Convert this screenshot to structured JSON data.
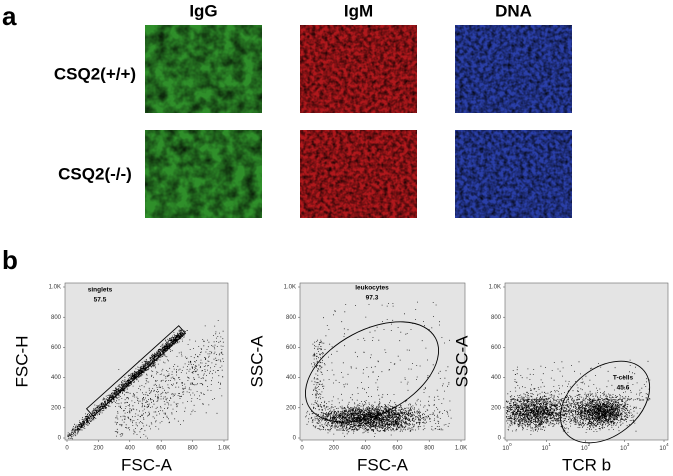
{
  "panel_a": {
    "label": "a",
    "columns": [
      "IgG",
      "IgM",
      "DNA"
    ],
    "rows": [
      "CSQ2(+/+)",
      "CSQ2(-/-)"
    ]
  },
  "panel_b": {
    "label": "b",
    "plots": [
      {
        "y_label": "FSC-H",
        "x_label": "FSC-A",
        "gate": "singlets",
        "percent": "57.5",
        "xticks": [
          "0",
          "200",
          "400",
          "600",
          "800",
          "1.0K"
        ],
        "yticks": [
          "0",
          "200",
          "400",
          "600",
          "800",
          "1.0K"
        ]
      },
      {
        "y_label": "SSC-A",
        "x_label": "FSC-A",
        "gate": "leukocytes",
        "percent": "97.3",
        "xticks": [
          "0",
          "200",
          "400",
          "600",
          "800",
          "1.0K"
        ],
        "yticks": [
          "0",
          "200",
          "400",
          "600",
          "800",
          "1.0K"
        ]
      },
      {
        "y_label": "SSC-A",
        "x_label": "TCR b",
        "gate": "T-cells",
        "percent": "45.6",
        "xticks": [
          {
            "base": "10",
            "exponent": "0"
          },
          {
            "base": "10",
            "exponent": "1"
          },
          {
            "base": "10",
            "exponent": "2"
          },
          {
            "base": "10",
            "exponent": "3"
          },
          {
            "base": "10",
            "exponent": "4"
          }
        ],
        "yticks": [
          "0",
          "200",
          "400",
          "600",
          "800",
          "1.0K"
        ]
      }
    ]
  }
}
